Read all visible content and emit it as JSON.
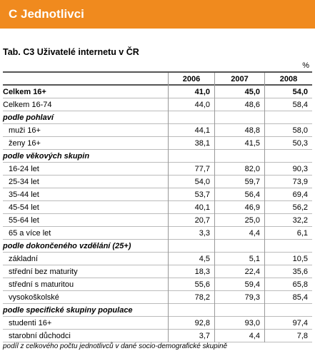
{
  "header": {
    "title": "C  Jednotlivci"
  },
  "table": {
    "title": "Tab. C3 Uživatelé internetu v ČR",
    "unit": "%",
    "columns": [
      "2006",
      "2007",
      "2008"
    ],
    "rows": [
      [
        "Celkem 16+",
        "41,0",
        "45,0",
        "54,0"
      ],
      [
        "Celkem 16-74",
        "44,0",
        "48,6",
        "58,4"
      ],
      [
        "podle pohlaví"
      ],
      [
        "muži 16+",
        "44,1",
        "48,8",
        "58,0"
      ],
      [
        "ženy 16+",
        "38,1",
        "41,5",
        "50,3"
      ],
      [
        "podle věkových skupin"
      ],
      [
        "16-24 let",
        "77,7",
        "82,0",
        "90,3"
      ],
      [
        "25-34 let",
        "54,0",
        "59,7",
        "73,9"
      ],
      [
        "35-44 let",
        "53,7",
        "56,4",
        "69,4"
      ],
      [
        "45-54 let",
        "40,1",
        "46,9",
        "56,2"
      ],
      [
        "55-64 let",
        "20,7",
        "25,0",
        "32,2"
      ],
      [
        "65 a více let",
        "3,3",
        "4,4",
        "6,1"
      ],
      [
        "podle dokončeného vzdělání (25+)"
      ],
      [
        "základní",
        "4,5",
        "5,1",
        "10,5"
      ],
      [
        "střední bez maturity",
        "18,3",
        "22,4",
        "35,6"
      ],
      [
        "střední s maturitou",
        "55,6",
        "59,4",
        "65,8"
      ],
      [
        "vysokoškolské",
        "78,2",
        "79,3",
        "85,4"
      ],
      [
        "podle specifické skupiny populace"
      ],
      [
        "studenti 16+",
        "92,8",
        "93,0",
        "97,4"
      ],
      [
        "starobní důchodci",
        "3,7",
        "4,4",
        "7,8"
      ]
    ],
    "note": "podíl z celkového počtu jednotlivců v dané socio-demografické skupině"
  }
}
